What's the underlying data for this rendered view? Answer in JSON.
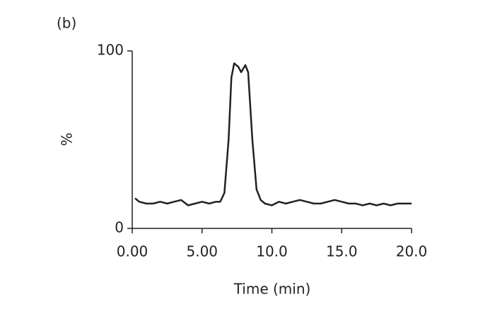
{
  "chart_data": {
    "type": "line",
    "title": "(b)",
    "y_label": "%",
    "x_label": "Time (min)",
    "x": [
      0.2,
      0.5,
      1,
      1.5,
      2,
      2.5,
      3,
      3.5,
      4,
      4.5,
      5,
      5.5,
      6,
      6.3,
      6.6,
      6.9,
      7.1,
      7.3,
      7.6,
      7.8,
      8.1,
      8.3,
      8.6,
      8.9,
      9.2,
      9.5,
      10,
      10.5,
      11,
      11.5,
      12,
      12.5,
      13,
      13.5,
      14,
      14.5,
      15,
      15.5,
      16,
      16.5,
      17,
      17.5,
      18,
      18.5,
      19,
      19.5,
      20
    ],
    "values": [
      17,
      15,
      14,
      14,
      15,
      14,
      15,
      16,
      13,
      14,
      15,
      14,
      15,
      15,
      20,
      50,
      85,
      93,
      91,
      88,
      92,
      88,
      50,
      22,
      16,
      14,
      13,
      15,
      14,
      15,
      16,
      15,
      14,
      14,
      15,
      16,
      15,
      14,
      14,
      13,
      14,
      13,
      14,
      13,
      14,
      14,
      14
    ],
    "color": "#222222",
    "xlim": [
      0,
      20
    ],
    "ylim": [
      0,
      100
    ],
    "xticks": [
      {
        "value": 0,
        "label": "0.00"
      },
      {
        "value": 5,
        "label": "5.00"
      },
      {
        "value": 10,
        "label": "10.0"
      },
      {
        "value": 15,
        "label": "15.0"
      },
      {
        "value": 20,
        "label": "20.0"
      }
    ],
    "yticks": [
      0,
      100
    ]
  }
}
